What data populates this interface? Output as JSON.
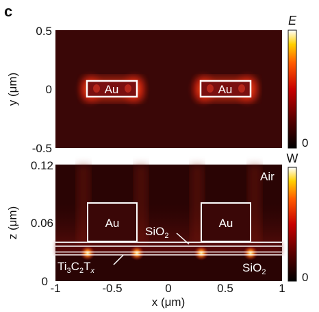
{
  "panel_letter": "c",
  "chart_data": [
    {
      "type": "heatmap",
      "panel": "top",
      "ylabel": "y (μm)",
      "yticks": [
        "0.5",
        "0",
        "-0.5"
      ],
      "ytick_values": [
        0.5,
        0,
        -0.5
      ],
      "xlim": [
        -1,
        1
      ],
      "ylim": [
        -0.5,
        0.5
      ],
      "colorbar": {
        "title": "E",
        "min_label": "0"
      },
      "structures": [
        {
          "label": "Au",
          "x": [
            -0.7,
            -0.3
          ],
          "y": [
            -0.05,
            0.05
          ]
        },
        {
          "label": "Au",
          "x": [
            0.3,
            0.7
          ],
          "y": [
            -0.05,
            0.05
          ]
        }
      ]
    },
    {
      "type": "heatmap",
      "panel": "bottom",
      "xlabel": "x (μm)",
      "ylabel": "z (μm)",
      "xticks": [
        "-1",
        "-0.5",
        "0",
        "0.5",
        "1"
      ],
      "xtick_values": [
        -1,
        -0.5,
        0,
        0.5,
        1
      ],
      "yticks": [
        "0.12",
        "0.06",
        "0"
      ],
      "ytick_values": [
        0.12,
        0.06,
        0
      ],
      "xlim": [
        -1,
        1
      ],
      "ylim": [
        0,
        0.12
      ],
      "colorbar": {
        "title": "W",
        "min_label": "0"
      },
      "structures": [
        {
          "label": "Au",
          "x": [
            -0.7,
            -0.3
          ],
          "z": [
            0.04,
            0.08
          ]
        },
        {
          "label": "Au",
          "x": [
            0.3,
            0.7
          ],
          "z": [
            0.04,
            0.08
          ]
        }
      ],
      "layer_lines_z": [
        0.04,
        0.036,
        0.03,
        0.027
      ],
      "annotations": {
        "air": "Air",
        "sio2_spacer_main": "SiO",
        "sio2_spacer_sub": "2",
        "mxene_a": "Ti",
        "mxene_b": "3",
        "mxene_c": "C",
        "mxene_d": "2",
        "mxene_e": "T",
        "mxene_f": "x",
        "substrate_main": "SiO",
        "substrate_sub": "2"
      }
    }
  ],
  "colors": {
    "background_field": "#3a0707",
    "field_dark": "#2a0404",
    "hot": "#ff3a12",
    "glow": "#ffd040",
    "outline": "#ffffff"
  }
}
